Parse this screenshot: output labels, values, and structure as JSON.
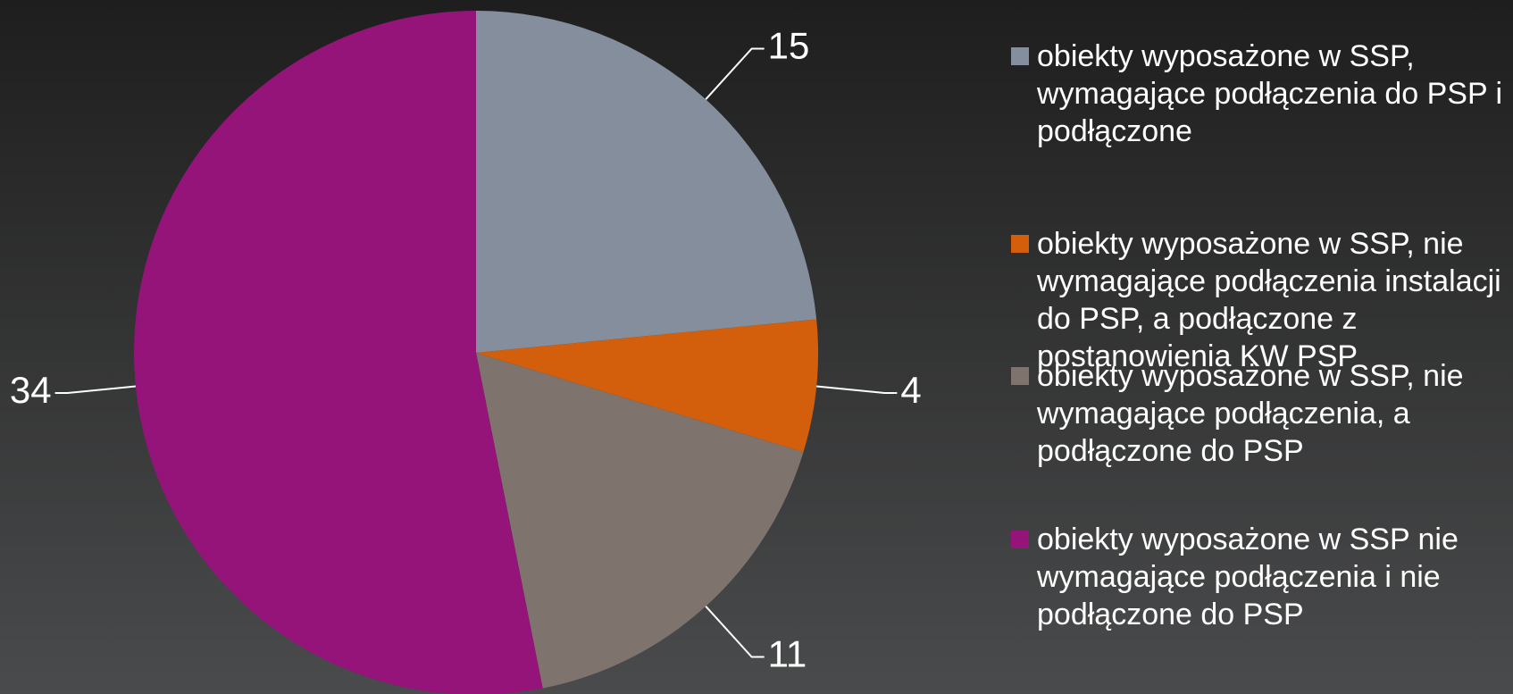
{
  "chart_data": {
    "type": "pie",
    "categories": [
      "obiekty wyposażone w SSP, wymagające podłączenia do PSP i podłączone",
      "obiekty wyposażone w SSP, nie wymagające podłączenia instalacji do PSP, a podłączone z postanowienia KW PSP",
      "obiekty wyposażone w SSP, nie wymagające podłączenia, a podłączone do PSP",
      "obiekty wyposażone w SSP nie wymagające podłączenia i nie podłączone do PSP"
    ],
    "values": [
      15,
      4,
      11,
      34
    ],
    "colors": [
      "#848e9c",
      "#d35f0c",
      "#7f736d",
      "#94147a"
    ],
    "legend": "right"
  }
}
